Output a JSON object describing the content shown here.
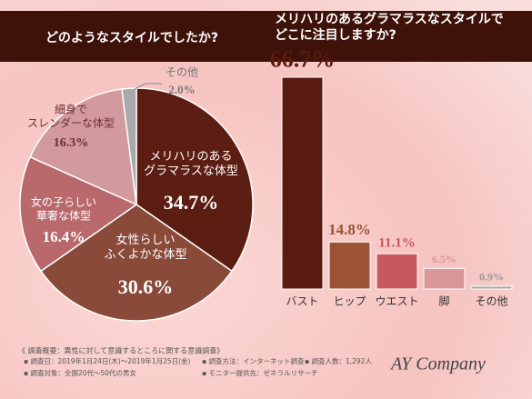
{
  "chart_data": [
    {
      "type": "pie",
      "title": "どのようなスタイルでしたか?",
      "categories": [
        "メリハリのある\nグラマラスな体型",
        "女性らしい\nふくよかな体型",
        "女の子らしい\n華奢な体型",
        "細身で\nスレンダーな体型",
        "その他"
      ],
      "values": [
        34.7,
        30.6,
        16.4,
        16.3,
        2.0
      ],
      "value_labels": [
        "34.7%",
        "30.6%",
        "16.4%",
        "16.3%",
        "2.0%"
      ],
      "colors": [
        "#5c1d12",
        "#8a4a3a",
        "#b9686c",
        "#d39a9d",
        "#a9a9ab"
      ]
    },
    {
      "type": "bar",
      "title": "メリハリのあるグラマラスなスタイルで\nどこに注目しますか?",
      "categories": [
        "バスト",
        "ヒップ",
        "ウエスト",
        "脚",
        "その他"
      ],
      "values": [
        66.7,
        14.8,
        11.1,
        6.5,
        0.9
      ],
      "value_labels": [
        "66.7%",
        "14.8%",
        "11.1%",
        "6.5%",
        "0.9%"
      ],
      "colors": [
        "#5a1a10",
        "#9b5235",
        "#c9585e",
        "#da979b",
        "#a9a9ab"
      ]
    }
  ],
  "footer": {
    "heading": "《 調査概要：異性に対して意識するところに関する意識調査》",
    "items": [
      "▪ 調査日：2019年1月24日(木)〜2019年1月25日(金)",
      "▪ 調査方法：インターネット調査",
      "▪ 調査人数：1,292人",
      "▪ 調査対象：全国20代〜50代の男女",
      "▪ モニター提供先：ゼネラルリサーチ"
    ]
  },
  "logo": "AY Company"
}
